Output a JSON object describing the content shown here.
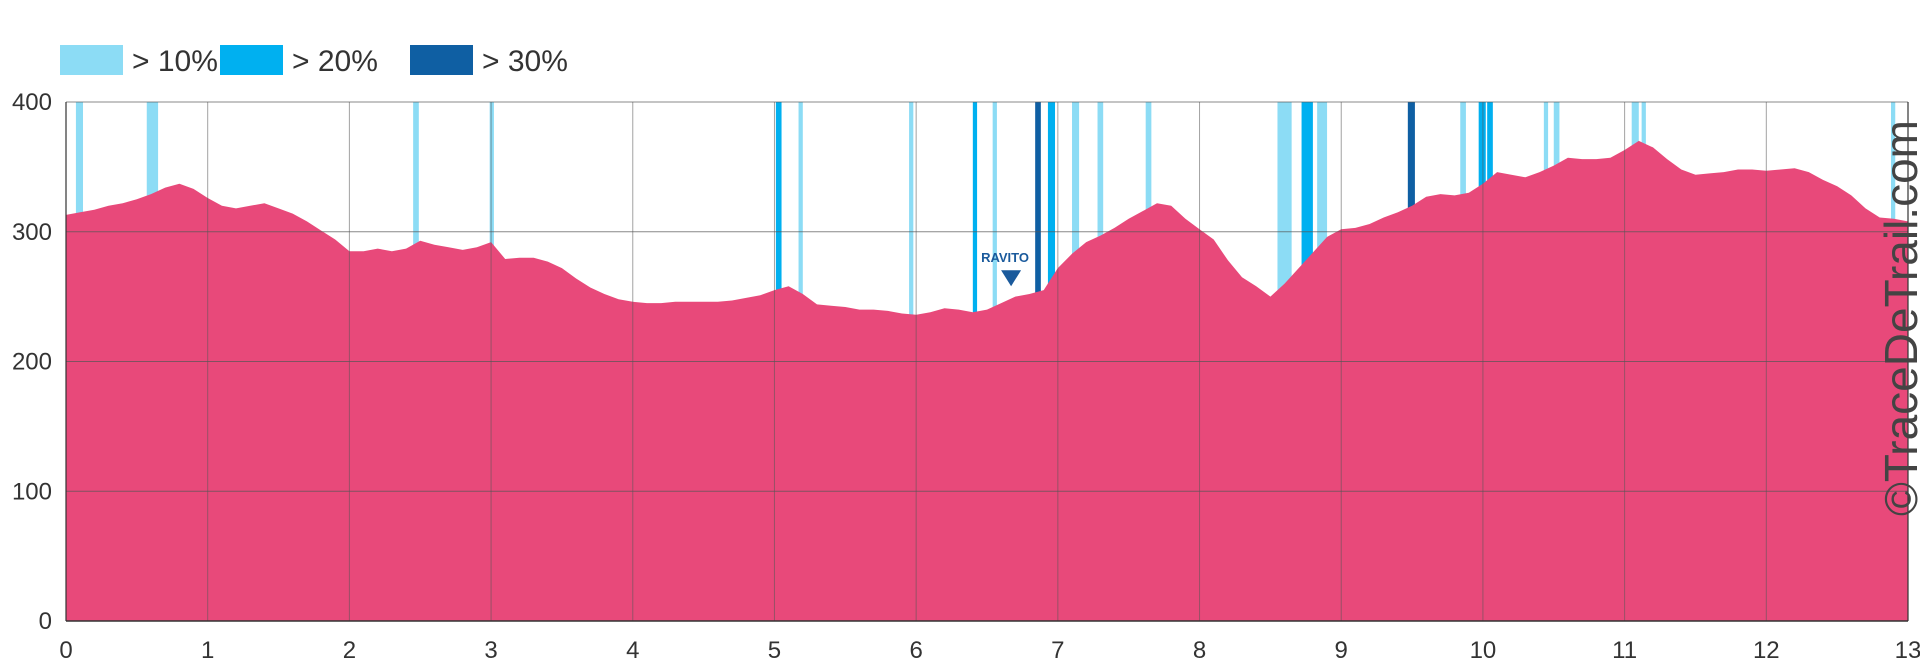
{
  "chart_data": {
    "type": "area",
    "title": "",
    "xlabel": "",
    "ylabel": "",
    "xlim": [
      0,
      13
    ],
    "ylim": [
      0,
      400
    ],
    "x_ticks": [
      0,
      1,
      2,
      3,
      4,
      5,
      6,
      7,
      8,
      9,
      10,
      11,
      12,
      13
    ],
    "y_ticks": [
      0,
      100,
      200,
      300,
      400
    ],
    "grid": true,
    "legend_position": "top-left",
    "colors": {
      "area": "#e8497a",
      "gt10": "#8cdcf5",
      "gt20": "#00b0f0",
      "gt30": "#0f5fa3",
      "marker": "#1a5a9c",
      "grid": "#555555"
    },
    "legend": [
      {
        "key": "gt10",
        "label": "> 10%"
      },
      {
        "key": "gt20",
        "label": "> 20%"
      },
      {
        "key": "gt30",
        "label": "> 30%"
      }
    ],
    "series": [
      {
        "x": [
          0,
          0.1,
          0.2,
          0.3,
          0.4,
          0.5,
          0.6,
          0.7,
          0.8,
          0.9,
          1.0,
          1.1,
          1.2,
          1.3,
          1.4,
          1.5,
          1.6,
          1.7,
          1.8,
          1.9,
          2.0,
          2.1,
          2.2,
          2.3,
          2.4,
          2.5,
          2.6,
          2.7,
          2.8,
          2.9,
          3.0,
          3.1,
          3.2,
          3.3,
          3.4,
          3.5,
          3.6,
          3.7,
          3.8,
          3.9,
          4.0,
          4.1,
          4.2,
          4.3,
          4.4,
          4.5,
          4.6,
          4.7,
          4.8,
          4.9,
          5.0,
          5.1,
          5.2,
          5.3,
          5.4,
          5.5,
          5.6,
          5.7,
          5.8,
          5.9,
          6.0,
          6.1,
          6.2,
          6.3,
          6.4,
          6.5,
          6.6,
          6.7,
          6.8,
          6.9,
          7.0,
          7.1,
          7.2,
          7.3,
          7.4,
          7.5,
          7.6,
          7.7,
          7.8,
          7.9,
          8.0,
          8.1,
          8.2,
          8.3,
          8.4,
          8.5,
          8.6,
          8.7,
          8.8,
          8.9,
          9.0,
          9.1,
          9.2,
          9.3,
          9.4,
          9.5,
          9.6,
          9.7,
          9.8,
          9.9,
          10.0,
          10.1,
          10.2,
          10.3,
          10.4,
          10.5,
          10.6,
          10.7,
          10.8,
          10.9,
          11.0,
          11.1,
          11.2,
          11.3,
          11.4,
          11.5,
          11.6,
          11.7,
          11.8,
          11.9,
          12.0,
          12.1,
          12.2,
          12.3,
          12.4,
          12.5,
          12.6,
          12.7,
          12.8,
          12.9,
          13.0
        ],
        "y": [
          313,
          315,
          317,
          320,
          322,
          325,
          329,
          334,
          337,
          333,
          326,
          320,
          318,
          320,
          322,
          318,
          314,
          308,
          301,
          294,
          285,
          285,
          287,
          285,
          287,
          293,
          290,
          288,
          286,
          288,
          292,
          279,
          280,
          280,
          277,
          272,
          264,
          257,
          252,
          248,
          246,
          245,
          245,
          246,
          246,
          246,
          246,
          247,
          249,
          251,
          255,
          258,
          252,
          244,
          243,
          242,
          240,
          240,
          239,
          237,
          236,
          238,
          241,
          240,
          238,
          240,
          245,
          250,
          252,
          255,
          272,
          283,
          292,
          297,
          303,
          310,
          316,
          322,
          320,
          310,
          302,
          294,
          278,
          265,
          258,
          250,
          260,
          272,
          284,
          296,
          302,
          303,
          306,
          311,
          315,
          320,
          327,
          329,
          328,
          330,
          337,
          346,
          344,
          342,
          346,
          351,
          357,
          356,
          356,
          357,
          363,
          370,
          365,
          356,
          348,
          344,
          345,
          346,
          348,
          348,
          347,
          348,
          349,
          346,
          340,
          335,
          328,
          318,
          311,
          310,
          308
        ]
      }
    ],
    "slope_bands": [
      {
        "class": "gt10",
        "x0": 0.07,
        "x1": 0.12
      },
      {
        "class": "gt10",
        "x0": 0.57,
        "x1": 0.65
      },
      {
        "class": "gt10",
        "x0": 2.45,
        "x1": 2.49
      },
      {
        "class": "gt10",
        "x0": 2.99,
        "x1": 3.02
      },
      {
        "class": "gt20",
        "x0": 5.01,
        "x1": 5.05
      },
      {
        "class": "gt10",
        "x0": 5.17,
        "x1": 5.2
      },
      {
        "class": "gt10",
        "x0": 5.95,
        "x1": 5.98
      },
      {
        "class": "gt20",
        "x0": 6.4,
        "x1": 6.43
      },
      {
        "class": "gt10",
        "x0": 6.54,
        "x1": 6.57
      },
      {
        "class": "gt30",
        "x0": 6.84,
        "x1": 6.88
      },
      {
        "class": "gt20",
        "x0": 6.93,
        "x1": 6.98
      },
      {
        "class": "gt10",
        "x0": 7.1,
        "x1": 7.15
      },
      {
        "class": "gt10",
        "x0": 7.28,
        "x1": 7.32
      },
      {
        "class": "gt10",
        "x0": 7.62,
        "x1": 7.66
      },
      {
        "class": "gt10",
        "x0": 8.55,
        "x1": 8.65
      },
      {
        "class": "gt20",
        "x0": 8.72,
        "x1": 8.8
      },
      {
        "class": "gt10",
        "x0": 8.83,
        "x1": 8.9
      },
      {
        "class": "gt30",
        "x0": 9.47,
        "x1": 9.52
      },
      {
        "class": "gt10",
        "x0": 9.84,
        "x1": 9.88
      },
      {
        "class": "gt20",
        "x0": 9.97,
        "x1": 10.02
      },
      {
        "class": "gt20",
        "x0": 10.03,
        "x1": 10.07
      },
      {
        "class": "gt10",
        "x0": 10.43,
        "x1": 10.46
      },
      {
        "class": "gt10",
        "x0": 10.5,
        "x1": 10.54
      },
      {
        "class": "gt10",
        "x0": 11.05,
        "x1": 11.1
      },
      {
        "class": "gt10",
        "x0": 11.12,
        "x1": 11.15
      },
      {
        "class": "gt10",
        "x0": 12.88,
        "x1": 12.91
      }
    ],
    "annotations": [
      {
        "label": "RAVITO",
        "x": 6.67,
        "y": 258
      }
    ]
  },
  "watermark": "©TraceDeTrail.com"
}
